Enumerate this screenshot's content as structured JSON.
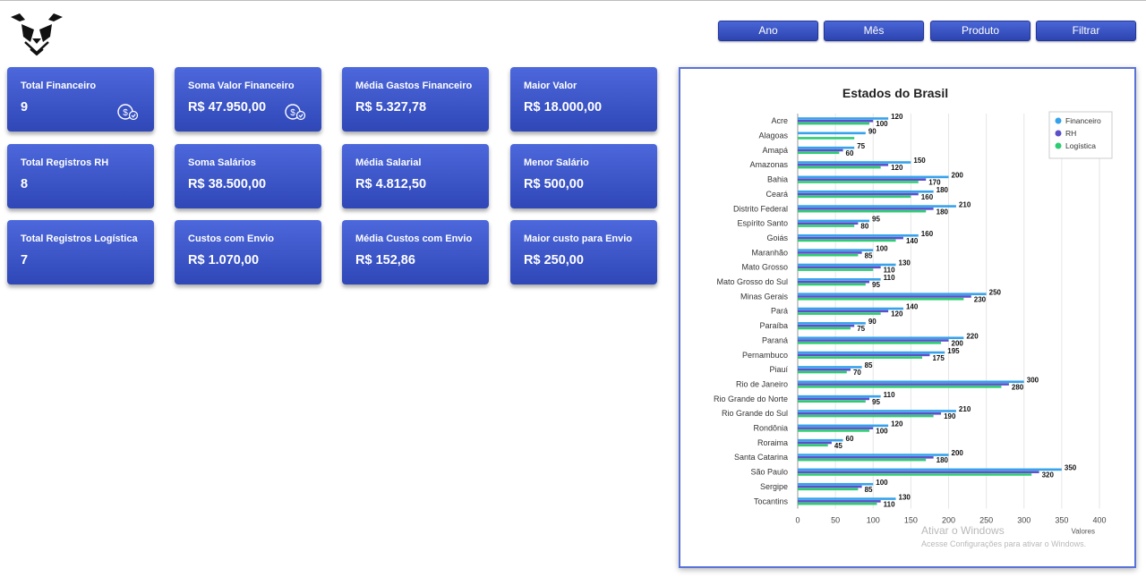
{
  "filters": [
    "Ano",
    "Mês",
    "Produto",
    "Filtrar"
  ],
  "cards": [
    {
      "title": "Total Financeiro",
      "value": "9",
      "icon": "money-icon"
    },
    {
      "title": "Soma Valor Financeiro",
      "value": "R$ 47.950,00",
      "icon": "money-icon"
    },
    {
      "title": "Média Gastos Financeiro",
      "value": "R$ 5.327,78"
    },
    {
      "title": "Maior Valor",
      "value": "R$ 18.000,00"
    },
    {
      "title": "Total Registros RH",
      "value": "8"
    },
    {
      "title": "Soma Salários",
      "value": "R$ 38.500,00"
    },
    {
      "title": "Média Salarial",
      "value": "R$ 4.812,50"
    },
    {
      "title": "Menor Salário",
      "value": "R$ 500,00"
    },
    {
      "title": "Total Registros Logística",
      "value": "7"
    },
    {
      "title": "Custos com Envio",
      "value": "R$ 1.070,00"
    },
    {
      "title": "Média Custos com Envio",
      "value": "R$ 152,86"
    },
    {
      "title": "Maior custo para Envio",
      "value": "R$ 250,00"
    }
  ],
  "colors": {
    "financeiro": "#36a2eb",
    "rh": "#5b50c9",
    "logistica": "#2ecc71",
    "card": "#3a55c8"
  },
  "watermark": {
    "line1": "Ativar o Windows",
    "line2": "Acesse Configurações para ativar o Windows."
  },
  "chart_data": {
    "type": "bar",
    "orientation": "horizontal",
    "title": "Estados do Brasil",
    "xlabel": "Valores",
    "xlim": [
      0,
      400
    ],
    "xticks": [
      0,
      50,
      100,
      150,
      200,
      250,
      300,
      350,
      400
    ],
    "grid": true,
    "legend_position": "top-right",
    "categories": [
      "Acre",
      "Alagoas",
      "Amapá",
      "Amazonas",
      "Bahia",
      "Ceará",
      "Distrito Federal",
      "Espírito Santo",
      "Goiás",
      "Maranhão",
      "Mato Grosso",
      "Mato Grosso do Sul",
      "Minas Gerais",
      "Pará",
      "Paraíba",
      "Paraná",
      "Pernambuco",
      "Piauí",
      "Rio de Janeiro",
      "Rio Grande do Norte",
      "Rio Grande do Sul",
      "Rondônia",
      "Roraima",
      "Santa Catarina",
      "São Paulo",
      "Sergipe",
      "Tocantins"
    ],
    "series": [
      {
        "name": "Financeiro",
        "color": "#36a2eb",
        "values": [
          120,
          90,
          75,
          150,
          200,
          180,
          210,
          95,
          160,
          100,
          130,
          110,
          250,
          140,
          90,
          220,
          195,
          85,
          300,
          110,
          210,
          120,
          60,
          200,
          350,
          100,
          130
        ]
      },
      {
        "name": "RH",
        "color": "#5b50c9",
        "values": [
          100,
          null,
          60,
          120,
          170,
          160,
          180,
          80,
          140,
          85,
          110,
          95,
          230,
          120,
          75,
          200,
          175,
          70,
          280,
          95,
          190,
          100,
          45,
          180,
          320,
          85,
          110
        ]
      },
      {
        "name": "Logística",
        "color": "#2ecc71",
        "values": [
          95,
          75,
          55,
          110,
          160,
          150,
          170,
          75,
          130,
          80,
          100,
          90,
          220,
          110,
          70,
          190,
          165,
          65,
          270,
          90,
          180,
          95,
          40,
          170,
          310,
          80,
          105
        ]
      }
    ],
    "data_labels": [
      [
        "120",
        "100"
      ],
      [
        "90",
        ""
      ],
      [
        "75",
        "60"
      ],
      [
        "150",
        "120"
      ],
      [
        "200",
        "170"
      ],
      [
        "180",
        "160"
      ],
      [
        "210",
        "180"
      ],
      [
        "95",
        "80"
      ],
      [
        "160",
        "140"
      ],
      [
        "100",
        "85"
      ],
      [
        "130",
        "110"
      ],
      [
        "110",
        "95"
      ],
      [
        "250",
        "230"
      ],
      [
        "140",
        "120"
      ],
      [
        "90",
        "75"
      ],
      [
        "220",
        "200"
      ],
      [
        "195",
        "175"
      ],
      [
        "85",
        "70"
      ],
      [
        "300",
        "280"
      ],
      [
        "110",
        "95"
      ],
      [
        "210",
        "190"
      ],
      [
        "120",
        "100"
      ],
      [
        "60",
        "45"
      ],
      [
        "200",
        "180"
      ],
      [
        "350",
        "320"
      ],
      [
        "100",
        "85"
      ],
      [
        "130",
        "110"
      ]
    ]
  }
}
